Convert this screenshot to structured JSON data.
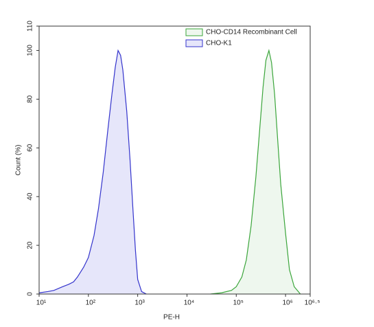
{
  "chart_data": {
    "type": "area",
    "x_label": "PE-H",
    "y_label": "Count (%)",
    "xscale": "log",
    "xlim": [
      10,
      3162277.66
    ],
    "xticks": [
      {
        "value": 10,
        "label": "10¹"
      },
      {
        "value": 100,
        "label": "10²"
      },
      {
        "value": 1000,
        "label": "10³"
      },
      {
        "value": 10000,
        "label": "10⁴"
      },
      {
        "value": 100000,
        "label": "10⁵"
      },
      {
        "value": 1000000,
        "label": "10⁶"
      },
      {
        "value": 3162277.66,
        "label": "10⁶·⁵"
      }
    ],
    "ylim": [
      0,
      110
    ],
    "yticks": [
      0,
      20,
      40,
      60,
      80,
      100,
      110
    ],
    "legend": "top-right",
    "series": [
      {
        "name": "CHO-CD14 Recombinant Cell",
        "color": "#3aa53a",
        "fill": "#eef7ee",
        "x": [
          30000,
          50000,
          80000,
          100000,
          130000,
          160000,
          200000,
          250000,
          300000,
          350000,
          400000,
          460000,
          520000,
          600000,
          700000,
          800000,
          1000000,
          1200000,
          1500000,
          2000000
        ],
        "values": [
          0,
          0.5,
          1.5,
          3,
          7,
          14,
          28,
          48,
          68,
          85,
          96,
          100,
          95,
          82,
          62,
          45,
          25,
          10,
          3,
          0
        ]
      },
      {
        "name": "CHO-K1",
        "color": "#3333cc",
        "fill": "#e6e6fa",
        "x": [
          10,
          15,
          20,
          30,
          40,
          50,
          60,
          80,
          100,
          130,
          160,
          200,
          250,
          300,
          350,
          400,
          450,
          500,
          600,
          700,
          800,
          900,
          1000,
          1200,
          1500
        ],
        "values": [
          0.5,
          1,
          1.5,
          3,
          4,
          5,
          7,
          11,
          15,
          24,
          35,
          50,
          68,
          82,
          93,
          100,
          98,
          92,
          75,
          55,
          35,
          18,
          6,
          1,
          0
        ]
      }
    ]
  }
}
